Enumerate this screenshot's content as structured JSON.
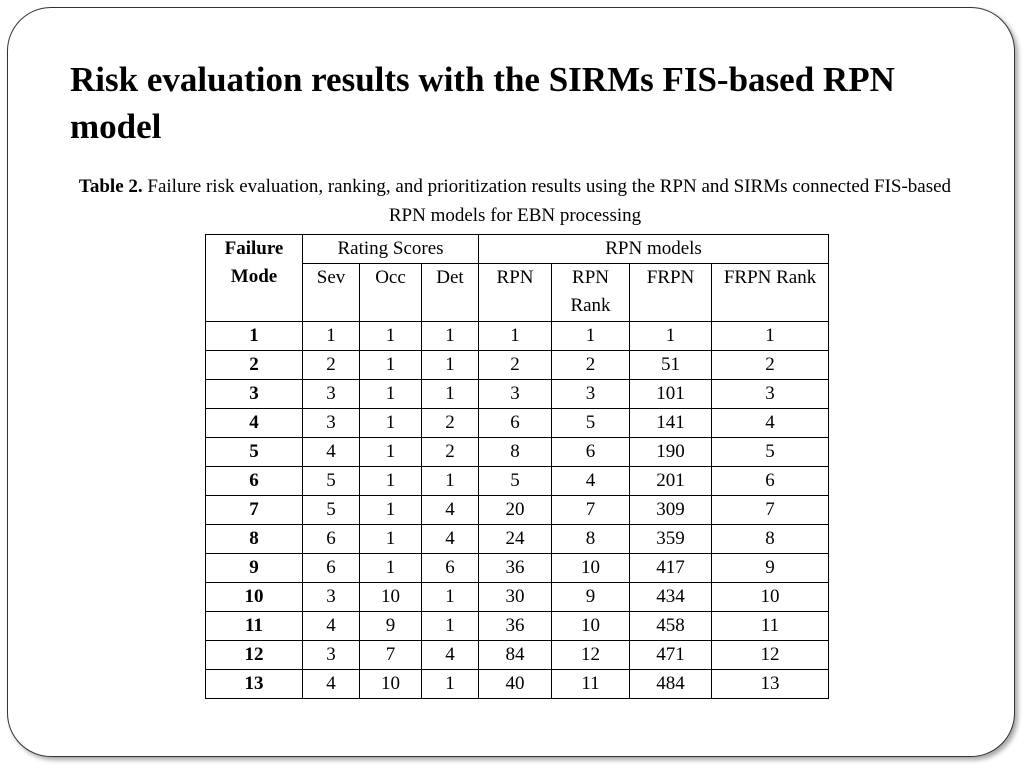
{
  "slide": {
    "title": "Risk evaluation results with the SIRMs FIS-based RPN model"
  },
  "caption": {
    "label": "Table 2.",
    "text": " Failure risk evaluation, ranking, and prioritization results using the RPN and SIRMs connected FIS-based RPN models for EBN processing"
  },
  "table": {
    "header_failure_mode": "Failure Mode",
    "group_rating_scores": "Rating Scores",
    "group_rpn_models": "RPN models",
    "columns": [
      "Sev",
      "Occ",
      "Det",
      "RPN",
      "RPN Rank",
      "FRPN",
      "FRPN Rank"
    ],
    "rows": [
      {
        "mode": "1",
        "values": [
          "1",
          "1",
          "1",
          "1",
          "1",
          "1",
          "1"
        ]
      },
      {
        "mode": "2",
        "values": [
          "2",
          "1",
          "1",
          "2",
          "2",
          "51",
          "2"
        ]
      },
      {
        "mode": "3",
        "values": [
          "3",
          "1",
          "1",
          "3",
          "3",
          "101",
          "3"
        ]
      },
      {
        "mode": "4",
        "values": [
          "3",
          "1",
          "2",
          "6",
          "5",
          "141",
          "4"
        ]
      },
      {
        "mode": "5",
        "values": [
          "4",
          "1",
          "2",
          "8",
          "6",
          "190",
          "5"
        ]
      },
      {
        "mode": "6",
        "values": [
          "5",
          "1",
          "1",
          "5",
          "4",
          "201",
          "6"
        ]
      },
      {
        "mode": "7",
        "values": [
          "5",
          "1",
          "4",
          "20",
          "7",
          "309",
          "7"
        ]
      },
      {
        "mode": "8",
        "values": [
          "6",
          "1",
          "4",
          "24",
          "8",
          "359",
          "8"
        ]
      },
      {
        "mode": "9",
        "values": [
          "6",
          "1",
          "6",
          "36",
          "10",
          "417",
          "9"
        ]
      },
      {
        "mode": "10",
        "values": [
          "3",
          "10",
          "1",
          "30",
          "9",
          "434",
          "10"
        ]
      },
      {
        "mode": "11",
        "values": [
          "4",
          "9",
          "1",
          "36",
          "10",
          "458",
          "11"
        ]
      },
      {
        "mode": "12",
        "values": [
          "3",
          "7",
          "4",
          "84",
          "12",
          "471",
          "12"
        ]
      },
      {
        "mode": "13",
        "values": [
          "4",
          "10",
          "1",
          "40",
          "11",
          "484",
          "13"
        ]
      }
    ]
  }
}
